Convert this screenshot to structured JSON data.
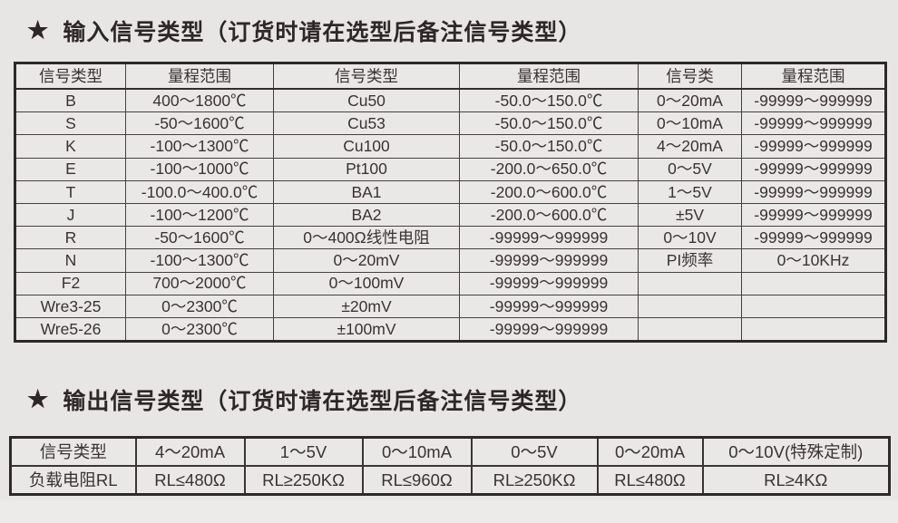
{
  "page": {
    "background": "#e8e6e4",
    "text_color": "#3a3233",
    "border_color": "#2e2829",
    "star_icon": "★"
  },
  "section_input": {
    "title": "输入信号类型（订货时请在选型后备注信号类型）",
    "table": {
      "headers": [
        "信号类型",
        "量程范围",
        "信号类型",
        "量程范围",
        "信号类",
        "量程范围"
      ],
      "rows": [
        [
          "B",
          "400～1800℃",
          "Cu50",
          "-50.0～150.0℃",
          "0～20mA",
          "-99999～999999"
        ],
        [
          "S",
          "-50～1600℃",
          "Cu53",
          "-50.0～150.0℃",
          "0～10mA",
          "-99999～999999"
        ],
        [
          "K",
          "-100～1300℃",
          "Cu100",
          "-50.0～150.0℃",
          "4～20mA",
          "-99999～999999"
        ],
        [
          "E",
          "-100～1000℃",
          "Pt100",
          "-200.0～650.0℃",
          "0～5V",
          "-99999～999999"
        ],
        [
          "T",
          "-100.0～400.0℃",
          "BA1",
          "-200.0～600.0℃",
          "1～5V",
          "-99999～999999"
        ],
        [
          "J",
          "-100～1200℃",
          "BA2",
          "-200.0～600.0℃",
          "±5V",
          "-99999～999999"
        ],
        [
          "R",
          "-50～1600℃",
          "0～400Ω线性电阻",
          "-99999～999999",
          "0～10V",
          "-99999～999999"
        ],
        [
          "N",
          "-100～1300℃",
          "0～20mV",
          "-99999～999999",
          "PI频率",
          "0～10KHz"
        ],
        [
          "F2",
          "700～2000℃",
          "0～100mV",
          "-99999～999999",
          "",
          ""
        ],
        [
          "Wre3-25",
          "0～2300℃",
          "±20mV",
          "-99999～999999",
          "",
          ""
        ],
        [
          "Wre5-26",
          "0～2300℃",
          "±100mV",
          "-99999～999999",
          "",
          ""
        ]
      ]
    }
  },
  "section_output": {
    "title": "输出信号类型（订货时请在选型后备注信号类型）",
    "table": {
      "rows": [
        [
          "信号类型",
          "4～20mA",
          "1～5V",
          "0～10mA",
          "0～5V",
          "0～20mA",
          "0～10V(特殊定制)"
        ],
        [
          "负载电阻RL",
          "RL≤480Ω",
          "RL≥250KΩ",
          "RL≤960Ω",
          "RL≥250KΩ",
          "RL≤480Ω",
          "RL≥4KΩ"
        ]
      ]
    }
  }
}
